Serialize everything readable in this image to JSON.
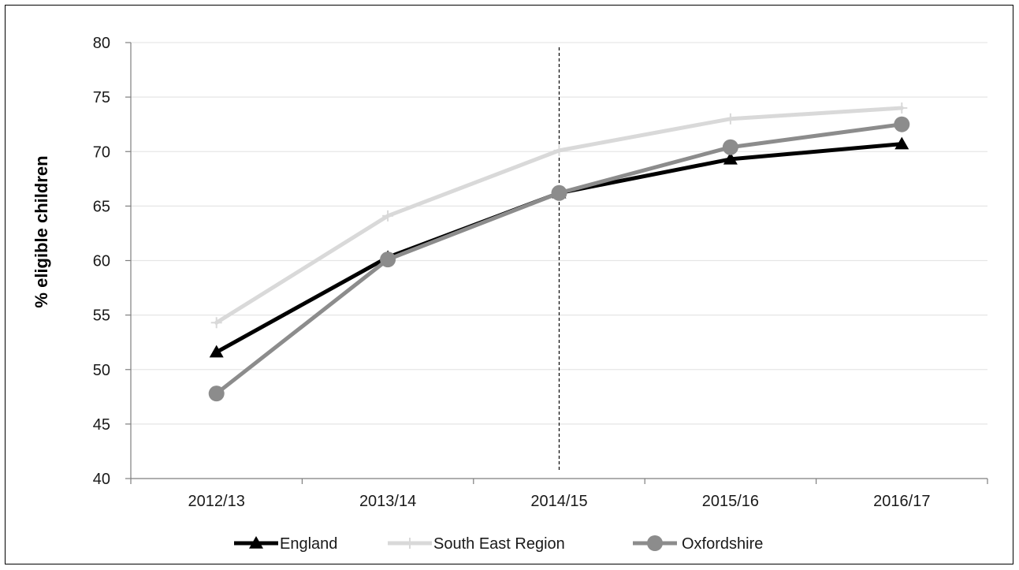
{
  "chart_data": {
    "type": "line",
    "title": "",
    "xlabel": "",
    "ylabel": "% eligible children",
    "ylim": [
      40,
      80
    ],
    "yticks": [
      40,
      45,
      50,
      55,
      60,
      65,
      70,
      75,
      80
    ],
    "categories": [
      "2012/13",
      "2013/14",
      "2014/15",
      "2015/16",
      "2016/17"
    ],
    "grid": "horizontal",
    "legend": "bottom",
    "reference_line": {
      "style": "dashed",
      "at_category": "2014/15"
    },
    "series": [
      {
        "name": "England",
        "values": [
          51.6,
          60.3,
          66.2,
          69.3,
          70.7
        ],
        "color": "#000000",
        "marker": "triangle"
      },
      {
        "name": "South East Region",
        "values": [
          54.3,
          64.1,
          70.1,
          73.0,
          74.0
        ],
        "color": "#d9d9d9",
        "marker": "plus"
      },
      {
        "name": "Oxfordshire",
        "values": [
          47.8,
          60.1,
          66.2,
          70.4,
          72.5
        ],
        "color": "#8c8c8c",
        "marker": "circle"
      }
    ]
  }
}
